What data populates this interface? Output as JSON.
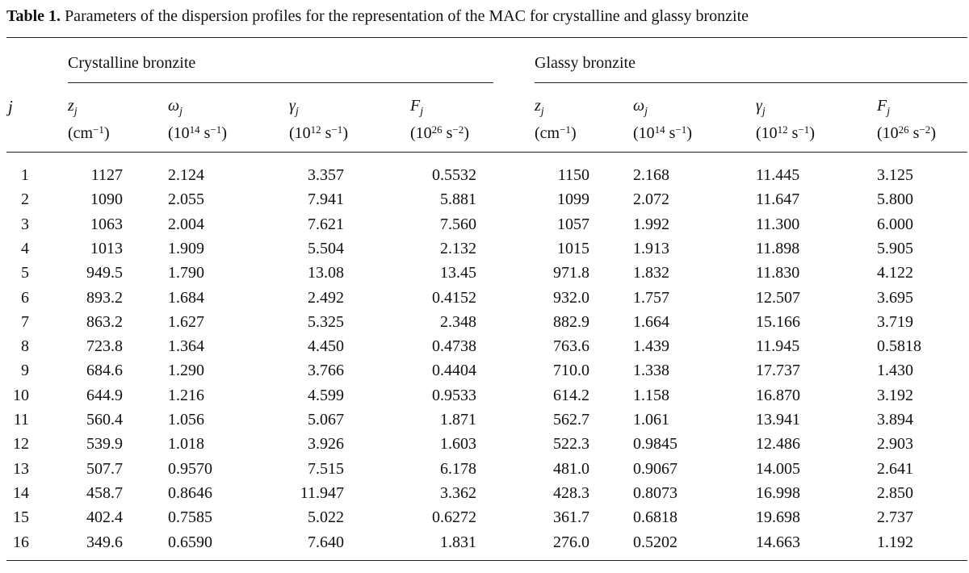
{
  "caption": {
    "label": "Table 1.",
    "text": "Parameters of the dispersion profiles for the representation of the MAC for crystalline and glassy bronzite"
  },
  "groups": {
    "crystalline": "Crystalline bronzite",
    "glassy": "Glassy bronzite"
  },
  "index_header": "j",
  "columns": [
    {
      "sym": "z",
      "sub": "j",
      "unit_pre": "(cm",
      "unit_sup": "−1",
      "unit_post": ")"
    },
    {
      "sym": "ω",
      "sub": "j",
      "unit_pre": "(10",
      "unit_sup": "14",
      "unit_post": " s",
      "unit_sup2": "−1",
      "unit_post2": ")"
    },
    {
      "sym": "γ",
      "sub": "j",
      "unit_pre": "(10",
      "unit_sup": "12",
      "unit_post": " s",
      "unit_sup2": "−1",
      "unit_post2": ")"
    },
    {
      "sym": "F",
      "sub": "j",
      "unit_pre": "(10",
      "unit_sup": "26",
      "unit_post": " s",
      "unit_sup2": "−2",
      "unit_post2": ")"
    }
  ],
  "rows": [
    [
      "1",
      "1127",
      "2.124",
      "3.357",
      "0.5532",
      "1150",
      "2.168",
      "11.445",
      "3.125"
    ],
    [
      "2",
      "1090",
      "2.055",
      "7.941",
      "5.881",
      "1099",
      "2.072",
      "11.647",
      "5.800"
    ],
    [
      "3",
      "1063",
      "2.004",
      "7.621",
      "7.560",
      "1057",
      "1.992",
      "11.300",
      "6.000"
    ],
    [
      "4",
      "1013",
      "1.909",
      "5.504",
      "2.132",
      "1015",
      "1.913",
      "11.898",
      "5.905"
    ],
    [
      "5",
      "949.5",
      "1.790",
      "13.08",
      "13.45",
      "971.8",
      "1.832",
      "11.830",
      "4.122"
    ],
    [
      "6",
      "893.2",
      "1.684",
      "2.492",
      "0.4152",
      "932.0",
      "1.757",
      "12.507",
      "3.695"
    ],
    [
      "7",
      "863.2",
      "1.627",
      "5.325",
      "2.348",
      "882.9",
      "1.664",
      "15.166",
      "3.719"
    ],
    [
      "8",
      "723.8",
      "1.364",
      "4.450",
      "0.4738",
      "763.6",
      "1.439",
      "11.945",
      "0.5818"
    ],
    [
      "9",
      "684.6",
      "1.290",
      "3.766",
      "0.4404",
      "710.0",
      "1.338",
      "17.737",
      "1.430"
    ],
    [
      "10",
      "644.9",
      "1.216",
      "4.599",
      "0.9533",
      "614.2",
      "1.158",
      "16.870",
      "3.192"
    ],
    [
      "11",
      "560.4",
      "1.056",
      "5.067",
      "1.871",
      "562.7",
      "1.061",
      "13.941",
      "3.894"
    ],
    [
      "12",
      "539.9",
      "1.018",
      "3.926",
      "1.603",
      "522.3",
      "0.9845",
      "12.486",
      "2.903"
    ],
    [
      "13",
      "507.7",
      "0.9570",
      "7.515",
      "6.178",
      "481.0",
      "0.9067",
      "14.005",
      "2.641"
    ],
    [
      "14",
      "458.7",
      "0.8646",
      "11.947",
      "3.362",
      "428.3",
      "0.8073",
      "16.998",
      "2.850"
    ],
    [
      "15",
      "402.4",
      "0.7585",
      "5.022",
      "0.6272",
      "361.7",
      "0.6818",
      "19.698",
      "2.737"
    ],
    [
      "16",
      "349.6",
      "0.6590",
      "7.640",
      "1.831",
      "276.0",
      "0.5202",
      "14.663",
      "1.192"
    ]
  ]
}
